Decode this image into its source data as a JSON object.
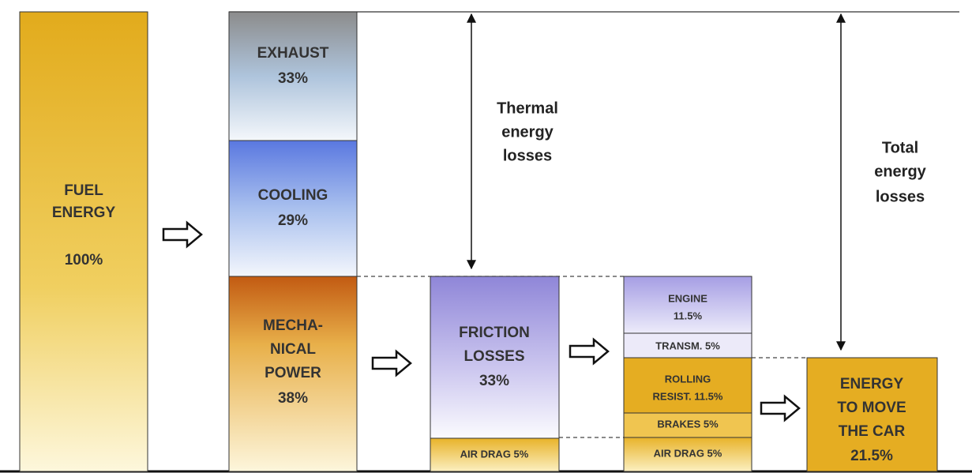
{
  "blocks": {
    "fuel": {
      "lines": [
        "FUEL",
        "ENERGY"
      ],
      "value": "100%"
    },
    "exhaust": {
      "lines": [
        "EXHAUST"
      ],
      "value": "33%"
    },
    "cooling": {
      "lines": [
        "COOLING"
      ],
      "value": "29%"
    },
    "mechanical": {
      "lines": [
        "MECHA-",
        "NICAL",
        "POWER"
      ],
      "value": "38%"
    },
    "friction": {
      "lines": [
        "FRICTION",
        "LOSSES"
      ],
      "value": "33%"
    },
    "friction_air_drag": "AIR DRAG 5%",
    "engine": {
      "lines": [
        "ENGINE"
      ],
      "value": "11.5%"
    },
    "transmission": "TRANSM. 5%",
    "rolling": {
      "lines": [
        "ROLLING",
        "RESIST. 11.5%"
      ]
    },
    "brakes": "BRAKES 5%",
    "air_drag": "AIR DRAG 5%",
    "move_car": {
      "lines": [
        "ENERGY",
        "TO MOVE",
        "THE CAR"
      ],
      "value": "21.5%"
    }
  },
  "annotations": {
    "thermal": [
      "Thermal",
      "energy",
      "losses"
    ],
    "total": [
      "Total",
      "energy",
      "losses"
    ]
  }
}
